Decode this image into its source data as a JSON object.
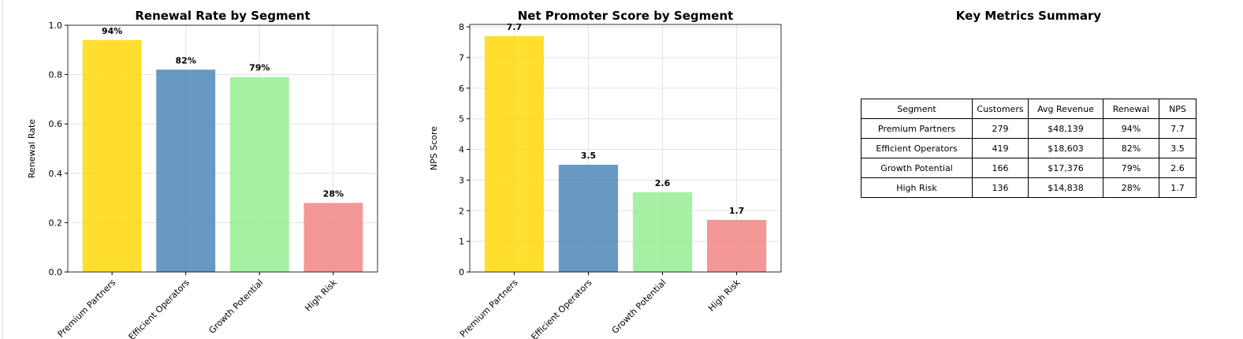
{
  "colors": {
    "premium_partners": "#FFD700",
    "efficient_operators": "#4682B4",
    "growth_potential": "#90EE90",
    "high_risk": "#F08080"
  },
  "chart_data": [
    {
      "type": "bar",
      "title": "Renewal Rate by Segment",
      "ylabel": "Renewal Rate",
      "xlabel": "",
      "categories": [
        "Premium Partners",
        "Efficient Operators",
        "Growth Potential",
        "High Risk"
      ],
      "values": [
        0.94,
        0.82,
        0.79,
        0.28
      ],
      "data_labels": [
        "94%",
        "82%",
        "79%",
        "28%"
      ],
      "yticks": [
        "0.0",
        "0.2",
        "0.4",
        "0.6",
        "0.8",
        "1.0"
      ],
      "ylim": [
        0,
        1.0
      ],
      "grid": true
    },
    {
      "type": "bar",
      "title": "Net Promoter Score by Segment",
      "ylabel": "NPS Score",
      "xlabel": "",
      "categories": [
        "Premium Partners",
        "Efficient Operators",
        "Growth Potential",
        "High Risk"
      ],
      "values": [
        7.7,
        3.5,
        2.6,
        1.7
      ],
      "data_labels": [
        "7.7",
        "3.5",
        "2.6",
        "1.7"
      ],
      "yticks": [
        "0",
        "1",
        "2",
        "3",
        "4",
        "5",
        "6",
        "7",
        "8"
      ],
      "ylim": [
        0,
        8.08
      ],
      "grid": true
    },
    {
      "type": "table",
      "title": "Key Metrics Summary",
      "columns": [
        "Segment",
        "Customers",
        "Avg Revenue",
        "Renewal",
        "NPS"
      ],
      "rows": [
        [
          "Premium Partners",
          "279",
          "$48,139",
          "94%",
          "7.7"
        ],
        [
          "Efficient Operators",
          "419",
          "$18,603",
          "82%",
          "3.5"
        ],
        [
          "Growth Potential",
          "166",
          "$17,376",
          "79%",
          "2.6"
        ],
        [
          "High Risk",
          "136",
          "$14,838",
          "28%",
          "1.7"
        ]
      ]
    }
  ]
}
